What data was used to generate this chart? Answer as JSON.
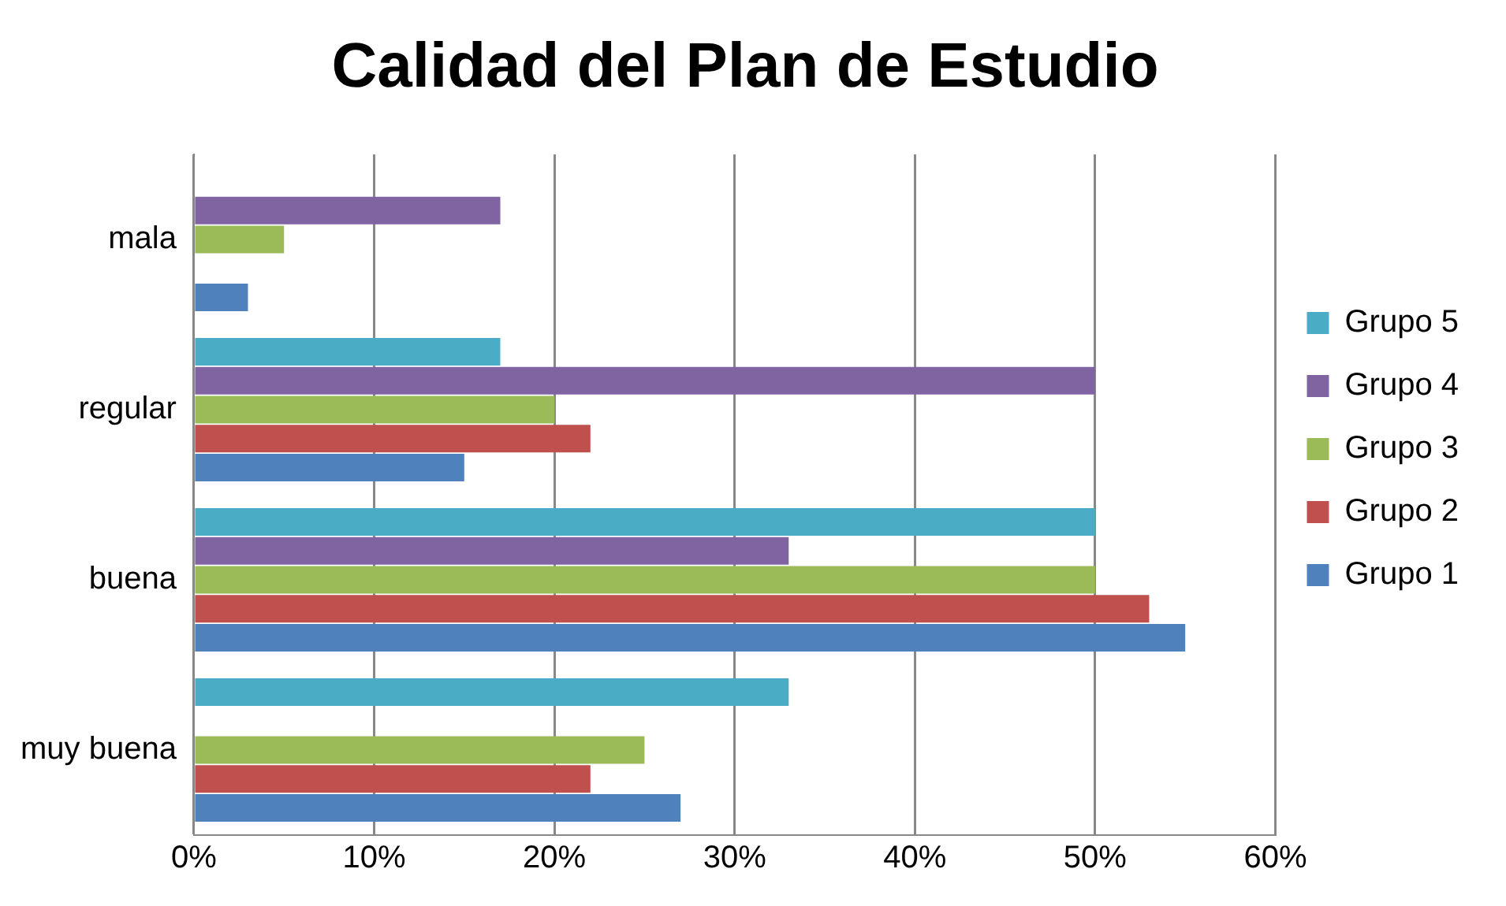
{
  "chart_data": {
    "type": "bar",
    "orientation": "horizontal",
    "title": "Calidad del Plan de Estudio",
    "categories": [
      "mala",
      "regular",
      "buena",
      "muy buena"
    ],
    "series": [
      {
        "name": "Grupo 1",
        "color": "#4f81bd",
        "values": [
          3,
          15,
          55,
          27
        ]
      },
      {
        "name": "Grupo 2",
        "color": "#c0504d",
        "values": [
          0,
          22,
          53,
          22
        ]
      },
      {
        "name": "Grupo 3",
        "color": "#9bbb59",
        "values": [
          5,
          20,
          50,
          25
        ]
      },
      {
        "name": "Grupo 4",
        "color": "#8064a2",
        "values": [
          17,
          50,
          33,
          0
        ]
      },
      {
        "name": "Grupo 5",
        "color": "#4bacc6",
        "values": [
          0,
          17,
          50,
          33
        ]
      }
    ],
    "xlim": [
      0,
      60
    ],
    "xticks": [
      {
        "value": 0,
        "label": "0%"
      },
      {
        "value": 10,
        "label": "10%"
      },
      {
        "value": 20,
        "label": "20%"
      },
      {
        "value": 30,
        "label": "30%"
      },
      {
        "value": 40,
        "label": "40%"
      },
      {
        "value": 50,
        "label": "50%"
      },
      {
        "value": 60,
        "label": "60%"
      }
    ],
    "grid": "x",
    "legend": "right"
  }
}
